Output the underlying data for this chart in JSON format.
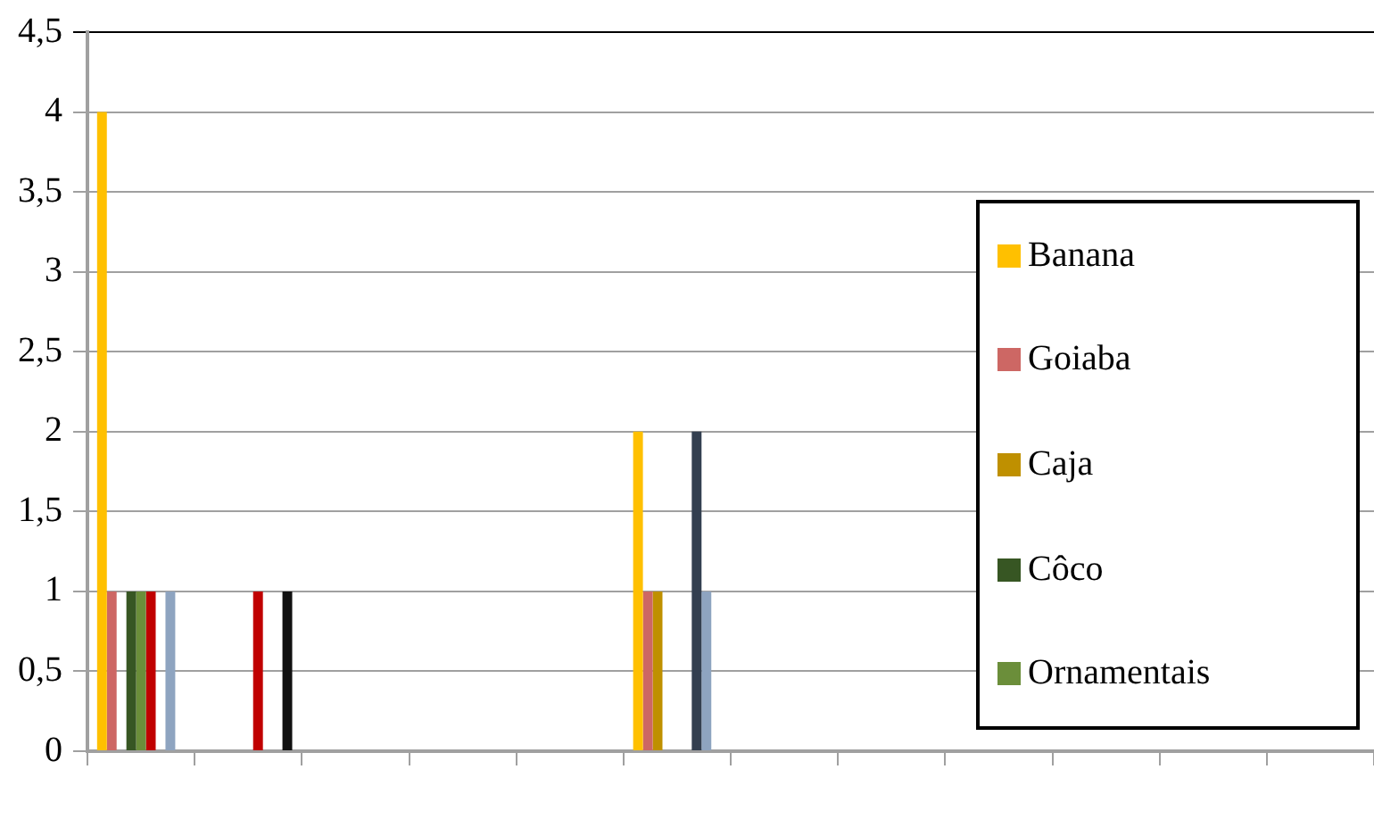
{
  "chart_data": {
    "type": "bar",
    "categories": [
      null,
      null,
      null,
      null,
      null,
      null,
      null,
      null,
      null,
      null,
      null,
      null
    ],
    "series": [
      {
        "name": "Banana",
        "color": "#ffc000",
        "values": [
          4,
          0,
          0,
          0,
          0,
          2,
          0,
          0,
          0,
          0,
          0,
          0
        ]
      },
      {
        "name": "Goiaba",
        "color": "#cd6764",
        "values": [
          1,
          0,
          0,
          0,
          0,
          1,
          0,
          0,
          0,
          0,
          0,
          0
        ]
      },
      {
        "name": "Caja",
        "color": "#bf9000",
        "values": [
          0,
          0,
          0,
          0,
          0,
          1,
          0,
          0,
          0,
          0,
          0,
          0
        ]
      },
      {
        "name": "Côco",
        "color": "#375623",
        "values": [
          1,
          0,
          0,
          0,
          0,
          0,
          0,
          0,
          0,
          0,
          0,
          0
        ]
      },
      {
        "name": "Ornamentais",
        "color": "#6b8e3a",
        "values": [
          1,
          0,
          0,
          0,
          0,
          0,
          0,
          0,
          0,
          0,
          0,
          0
        ]
      },
      {
        "color": "#c00000",
        "values": [
          1,
          1,
          0,
          0,
          0,
          0,
          0,
          0,
          0,
          0,
          0,
          0
        ]
      },
      {
        "color": "#333f50",
        "values": [
          0,
          0,
          0,
          0,
          0,
          2,
          0,
          0,
          0,
          0,
          0,
          0
        ]
      },
      {
        "color": "#8ea4c0",
        "values": [
          1,
          0,
          0,
          0,
          0,
          1,
          0,
          0,
          0,
          0,
          0,
          0
        ]
      },
      {
        "color": "#111111",
        "values": [
          0,
          1,
          0,
          0,
          0,
          0,
          0,
          0,
          0,
          0,
          0,
          0
        ]
      }
    ],
    "ylim": [
      0,
      4.5
    ],
    "yticks": [
      {
        "value": 0,
        "label": "0"
      },
      {
        "value": 0.5,
        "label": "0,5"
      },
      {
        "value": 1,
        "label": "1"
      },
      {
        "value": 1.5,
        "label": "1,5"
      },
      {
        "value": 2,
        "label": "2"
      },
      {
        "value": 2.5,
        "label": "2,5"
      },
      {
        "value": 3,
        "label": "3"
      },
      {
        "value": 3.5,
        "label": "3,5"
      },
      {
        "value": 4,
        "label": "4"
      },
      {
        "value": 4.5,
        "label": "4,5"
      }
    ],
    "grid": "y",
    "legend": "right"
  }
}
